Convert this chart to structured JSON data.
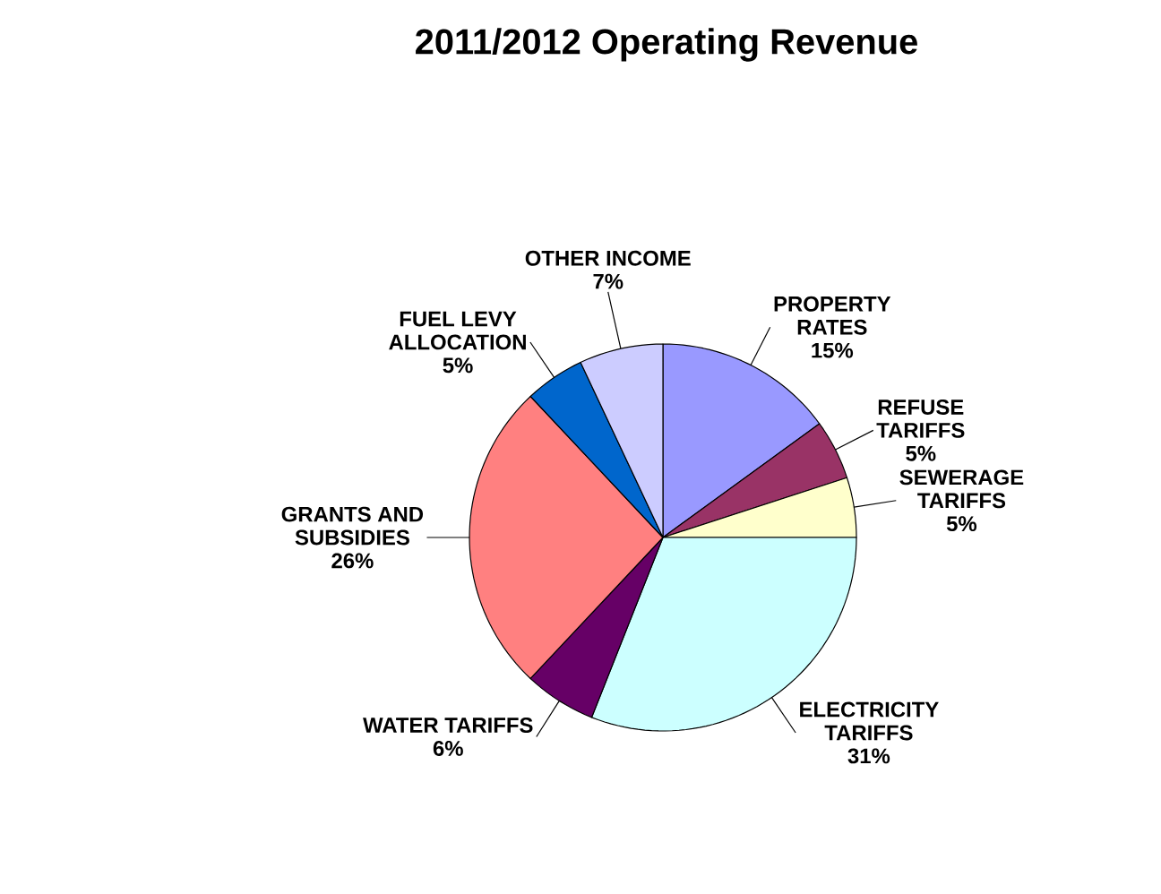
{
  "chart_data": {
    "type": "pie",
    "title": "2011/2012 Operating Revenue",
    "categories": [
      "PROPERTY RATES",
      "REFUSE TARIFFS",
      "SEWERAGE TARIFFS",
      "ELECTRICITY TARIFFS",
      "WATER TARIFFS",
      "GRANTS AND SUBSIDIES",
      "FUEL LEVY ALLOCATION",
      "OTHER INCOME"
    ],
    "values": [
      15,
      5,
      5,
      31,
      6,
      26,
      5,
      7
    ],
    "colors": [
      "#9999ff",
      "#993366",
      "#ffffcc",
      "#ccffff",
      "#660066",
      "#ff8080",
      "#0066cc",
      "#ccccff"
    ],
    "value_labels": [
      "15%",
      "5%",
      "5%",
      "31%",
      "6%",
      "26%",
      "5%",
      "7%"
    ]
  }
}
